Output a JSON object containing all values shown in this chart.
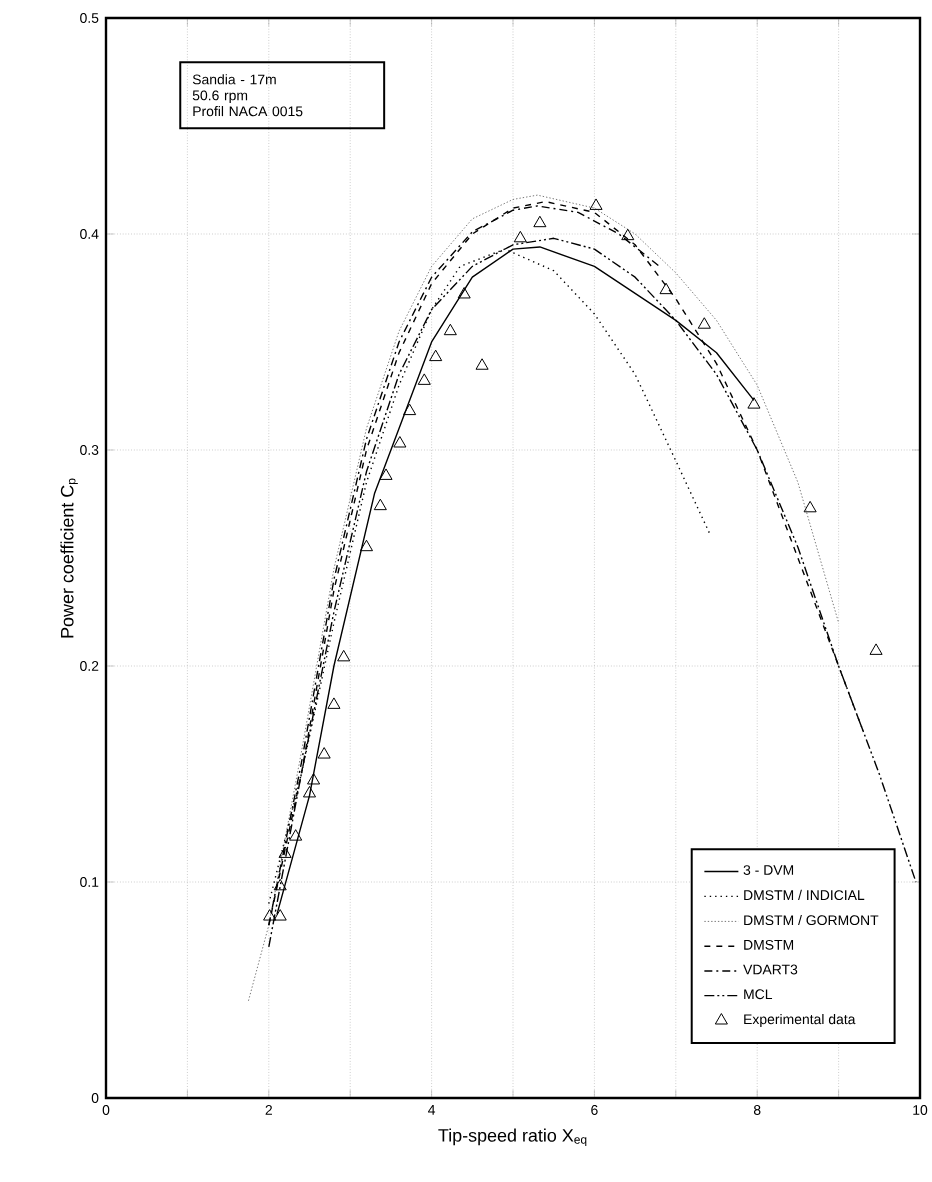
{
  "chart_data": {
    "type": "line",
    "xlabel": "Tip-speed ratio X$_{eq}$",
    "ylabel": "Power coefficient C$_{p}$",
    "annotations": [
      "Sandia - 17m",
      "50.6 rpm",
      "Profil NACA 0015"
    ],
    "xlim": [
      0,
      10
    ],
    "ylim": [
      0,
      0.5
    ],
    "xticks": [
      0,
      {
        "value": 1,
        "label": null
      },
      2,
      {
        "value": 3,
        "label": null
      },
      4,
      {
        "value": 5,
        "label": null
      },
      6,
      {
        "value": 7,
        "label": null
      },
      8,
      {
        "value": 9,
        "label": null
      },
      10
    ],
    "yticks": [
      0,
      0.1,
      0.2,
      0.3,
      0.4,
      0.5
    ],
    "grid": true,
    "legend": "bottom right",
    "marker": "none",
    "series": [
      {
        "name": "3 - DVM",
        "color": "#000000",
        "line_style": "solid",
        "x": [
          2.1,
          2.5,
          2.8,
          3.3,
          4.0,
          4.5,
          5.0,
          5.33,
          6.0,
          7.0,
          7.5,
          7.96
        ],
        "values": [
          0.085,
          0.14,
          0.2,
          0.28,
          0.35,
          0.38,
          0.393,
          0.394,
          0.385,
          0.36,
          0.345,
          0.323
        ]
      },
      {
        "name": "DMSTM / INDICIAL",
        "color": "#000000",
        "line_style": "dotted",
        "x": [
          2.0,
          2.4,
          2.8,
          3.2,
          3.6,
          4.0,
          4.35,
          4.9,
          5.5,
          6.0,
          6.5,
          7.0,
          7.42
        ],
        "values": [
          0.09,
          0.15,
          0.22,
          0.285,
          0.33,
          0.365,
          0.385,
          0.393,
          0.383,
          0.363,
          0.335,
          0.295,
          0.261
        ]
      },
      {
        "name": "DMSTM / GORMONT",
        "color": "#555555",
        "line_style": "densely dotted",
        "x": [
          1.75,
          2.0,
          2.4,
          2.8,
          3.2,
          3.6,
          4.0,
          4.5,
          5.0,
          5.3,
          6.0,
          6.5,
          7.0,
          7.5,
          8.0,
          8.5,
          9.0
        ],
        "values": [
          0.045,
          0.08,
          0.16,
          0.245,
          0.31,
          0.355,
          0.385,
          0.407,
          0.416,
          0.418,
          0.412,
          0.4,
          0.382,
          0.36,
          0.33,
          0.285,
          0.22
        ]
      },
      {
        "name": "DMSTM",
        "color": "#000000",
        "line_style": "dashed",
        "x": [
          2.0,
          2.4,
          2.8,
          3.2,
          3.6,
          4.0,
          4.5,
          5.0,
          5.4,
          6.0,
          6.5,
          7.0,
          7.5,
          8.0,
          8.5,
          9.0,
          9.3
        ],
        "values": [
          0.08,
          0.15,
          0.235,
          0.3,
          0.345,
          0.377,
          0.4,
          0.412,
          0.415,
          0.41,
          0.395,
          0.37,
          0.34,
          0.3,
          0.25,
          0.2,
          0.17
        ]
      },
      {
        "name": "VDART3",
        "color": "#000000",
        "line_style": "dashdot",
        "x": [
          2.0,
          2.4,
          2.8,
          3.2,
          3.6,
          4.0,
          4.5,
          5.0,
          5.3,
          5.8,
          6.3,
          6.8
        ],
        "values": [
          0.08,
          0.155,
          0.24,
          0.305,
          0.35,
          0.38,
          0.401,
          0.411,
          0.413,
          0.41,
          0.4,
          0.385
        ]
      },
      {
        "name": "MCL",
        "color": "#000000",
        "line_style": "dashdotdot",
        "x": [
          2.0,
          2.4,
          2.8,
          3.2,
          3.6,
          4.0,
          4.5,
          5.0,
          5.5,
          6.0,
          6.5,
          7.0,
          7.5,
          8.0,
          8.5,
          9.0,
          9.5,
          9.95
        ],
        "values": [
          0.07,
          0.15,
          0.225,
          0.29,
          0.335,
          0.365,
          0.385,
          0.395,
          0.398,
          0.393,
          0.38,
          0.36,
          0.335,
          0.3,
          0.255,
          0.2,
          0.15,
          0.1
        ]
      },
      {
        "name": "Experimental data",
        "type": "scatter",
        "marker": "triangle",
        "color": "#000000",
        "x": [
          2.01,
          2.14,
          2.14,
          2.2,
          2.33,
          2.5,
          2.55,
          2.68,
          2.8,
          2.92,
          3.2,
          3.37,
          3.44,
          3.61,
          3.73,
          3.91,
          4.05,
          4.23,
          4.4,
          4.62,
          5.09,
          5.33,
          6.02,
          6.41,
          6.88,
          7.35,
          7.96,
          8.65,
          9.46
        ],
        "values": [
          0.084,
          0.084,
          0.098,
          0.113,
          0.121,
          0.141,
          0.147,
          0.159,
          0.182,
          0.204,
          0.255,
          0.274,
          0.288,
          0.303,
          0.318,
          0.332,
          0.343,
          0.355,
          0.372,
          0.339,
          0.398,
          0.405,
          0.413,
          0.399,
          0.374,
          0.358,
          0.321,
          0.273,
          0.207
        ]
      }
    ]
  }
}
